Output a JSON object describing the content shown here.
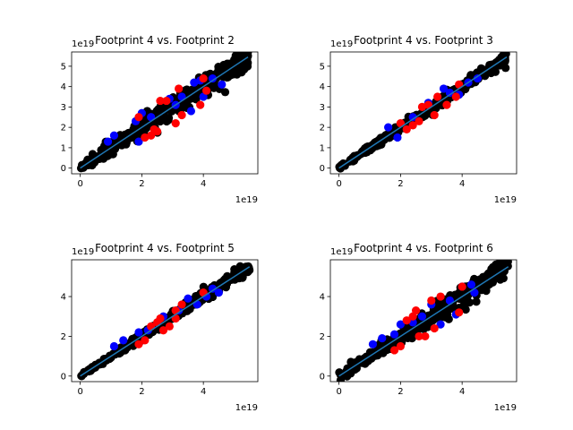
{
  "chart_data": [
    {
      "type": "scatter",
      "title": "Footprint 4 vs. Footprint 2",
      "xlim": [
        -0.28,
        5.77
      ],
      "ylim": [
        -0.28,
        5.7
      ],
      "xticks": [
        0,
        2,
        4
      ],
      "yticks": [
        0,
        1,
        2,
        3,
        4,
        5
      ],
      "x_offset_label": "1e19",
      "y_offset_label": "1e19",
      "spread": 0.28,
      "line": {
        "from": [
          0,
          0
        ],
        "to": [
          5.45,
          5.45
        ],
        "color": "#1f77b4"
      },
      "series": [
        {
          "name": "black",
          "color": "#000000",
          "count": 340
        },
        {
          "name": "blue",
          "color": "#0000ff",
          "points": [
            [
              0.9,
              1.3
            ],
            [
              1.1,
              1.6
            ],
            [
              1.8,
              2.3
            ],
            [
              2.0,
              2.7
            ],
            [
              1.9,
              1.3
            ],
            [
              2.3,
              2.5
            ],
            [
              2.9,
              3.4
            ],
            [
              3.3,
              3.5
            ],
            [
              3.6,
              2.8
            ],
            [
              3.7,
              4.2
            ],
            [
              3.9,
              4.3
            ],
            [
              4.3,
              4.4
            ],
            [
              4.0,
              3.5
            ],
            [
              4.6,
              4.1
            ],
            [
              3.1,
              3.1
            ]
          ]
        },
        {
          "name": "red",
          "color": "#ff0000",
          "points": [
            [
              1.9,
              2.5
            ],
            [
              2.1,
              1.5
            ],
            [
              2.3,
              1.6
            ],
            [
              2.4,
              1.9
            ],
            [
              2.6,
              3.3
            ],
            [
              2.8,
              3.3
            ],
            [
              3.2,
              3.9
            ],
            [
              3.1,
              2.2
            ],
            [
              3.3,
              2.6
            ],
            [
              4.0,
              4.4
            ],
            [
              3.9,
              3.1
            ],
            [
              4.1,
              3.8
            ],
            [
              2.5,
              1.8
            ]
          ]
        }
      ]
    },
    {
      "type": "scatter",
      "title": "Footprint 4 vs. Footprint 3",
      "xlim": [
        -0.28,
        5.77
      ],
      "ylim": [
        -0.28,
        5.7
      ],
      "xticks": [
        0,
        2,
        4
      ],
      "yticks": [
        0,
        1,
        2,
        3,
        4,
        5
      ],
      "x_offset_label": "1e19",
      "y_offset_label": "1e19",
      "spread": 0.14,
      "line": {
        "from": [
          0,
          0
        ],
        "to": [
          5.45,
          5.45
        ],
        "color": "#1f77b4"
      },
      "series": [
        {
          "name": "black",
          "color": "#000000",
          "count": 340
        },
        {
          "name": "blue",
          "color": "#0000ff",
          "points": [
            [
              1.6,
              2.0
            ],
            [
              1.9,
              1.5
            ],
            [
              2.4,
              2.5
            ],
            [
              2.9,
              3.2
            ],
            [
              3.4,
              3.9
            ],
            [
              3.9,
              3.6
            ],
            [
              4.2,
              4.2
            ],
            [
              4.5,
              4.4
            ],
            [
              3.6,
              3.7
            ]
          ]
        },
        {
          "name": "red",
          "color": "#ff0000",
          "points": [
            [
              2.0,
              2.2
            ],
            [
              2.2,
              1.9
            ],
            [
              2.4,
              2.1
            ],
            [
              2.6,
              2.3
            ],
            [
              2.7,
              3.0
            ],
            [
              3.1,
              2.6
            ],
            [
              3.2,
              3.5
            ],
            [
              3.5,
              3.1
            ],
            [
              3.8,
              3.5
            ],
            [
              3.9,
              4.1
            ],
            [
              2.9,
              3.1
            ]
          ]
        }
      ]
    },
    {
      "type": "scatter",
      "title": "Footprint 4 vs. Footprint 5",
      "xlim": [
        -0.28,
        5.77
      ],
      "ylim": [
        -0.28,
        5.85
      ],
      "xticks": [
        0,
        2,
        4
      ],
      "yticks": [
        0,
        2,
        4
      ],
      "x_offset_label": "1e19",
      "y_offset_label": "1e19",
      "spread": 0.14,
      "line": {
        "from": [
          0,
          0
        ],
        "to": [
          5.5,
          5.5
        ],
        "color": "#1f77b4"
      },
      "series": [
        {
          "name": "black",
          "color": "#000000",
          "count": 340
        },
        {
          "name": "blue",
          "color": "#0000ff",
          "points": [
            [
              1.1,
              1.5
            ],
            [
              1.4,
              1.8
            ],
            [
              1.9,
              2.2
            ],
            [
              2.2,
              2.3
            ],
            [
              2.7,
              3.0
            ],
            [
              3.2,
              3.3
            ],
            [
              3.5,
              3.9
            ],
            [
              3.8,
              3.6
            ],
            [
              4.3,
              4.4
            ],
            [
              4.5,
              4.2
            ],
            [
              4.1,
              4.0
            ]
          ]
        },
        {
          "name": "red",
          "color": "#ff0000",
          "points": [
            [
              1.9,
              1.6
            ],
            [
              2.1,
              1.8
            ],
            [
              2.3,
              2.5
            ],
            [
              2.5,
              2.7
            ],
            [
              2.7,
              2.3
            ],
            [
              2.9,
              2.5
            ],
            [
              3.1,
              3.3
            ],
            [
              3.3,
              3.6
            ],
            [
              3.1,
              2.9
            ],
            [
              4.0,
              4.2
            ],
            [
              2.6,
              2.9
            ]
          ]
        }
      ]
    },
    {
      "type": "scatter",
      "title": "Footprint 4 vs. Footprint 6",
      "xlim": [
        -0.28,
        5.77
      ],
      "ylim": [
        -0.28,
        5.85
      ],
      "xticks": [
        0,
        2,
        4
      ],
      "yticks": [
        0,
        2,
        4
      ],
      "x_offset_label": "1e19",
      "y_offset_label": "1e19",
      "spread": 0.3,
      "line": {
        "from": [
          0,
          0
        ],
        "to": [
          5.5,
          5.5
        ],
        "color": "#1f77b4"
      },
      "series": [
        {
          "name": "black",
          "color": "#000000",
          "count": 340
        },
        {
          "name": "blue",
          "color": "#0000ff",
          "points": [
            [
              1.1,
              1.6
            ],
            [
              1.4,
              1.9
            ],
            [
              1.8,
              2.1
            ],
            [
              2.0,
              2.6
            ],
            [
              2.7,
              3.0
            ],
            [
              3.0,
              3.6
            ],
            [
              3.6,
              3.8
            ],
            [
              4.0,
              4.5
            ],
            [
              4.3,
              4.6
            ],
            [
              3.8,
              3.1
            ],
            [
              4.4,
              4.2
            ],
            [
              3.3,
              2.6
            ],
            [
              2.4,
              2.7
            ]
          ]
        },
        {
          "name": "red",
          "color": "#ff0000",
          "points": [
            [
              1.8,
              1.3
            ],
            [
              2.0,
              1.5
            ],
            [
              2.2,
              2.8
            ],
            [
              2.4,
              3.0
            ],
            [
              2.6,
              2.0
            ],
            [
              2.8,
              2.0
            ],
            [
              3.0,
              3.8
            ],
            [
              3.3,
              4.0
            ],
            [
              3.1,
              2.4
            ],
            [
              3.9,
              3.2
            ],
            [
              4.0,
              4.5
            ],
            [
              2.5,
              3.3
            ]
          ]
        }
      ]
    }
  ]
}
